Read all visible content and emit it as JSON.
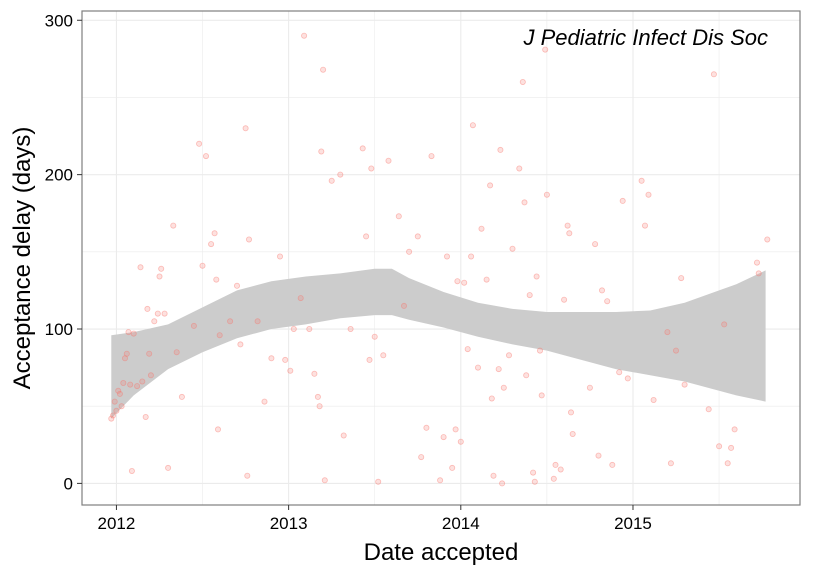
{
  "chart_data": {
    "type": "scatter",
    "title": "",
    "annotation": "J Pediatric Infect Dis Soc",
    "xlabel": "Date accepted",
    "ylabel": "Acceptance delay (days)",
    "x_ticks": [
      2012,
      2013,
      2014,
      2015
    ],
    "y_ticks": [
      0,
      100,
      200,
      300
    ],
    "xlim": [
      2011.8,
      2015.97
    ],
    "ylim": [
      -14,
      306
    ],
    "grid": true,
    "legend": "none",
    "colors": {
      "points": "#F8766D",
      "smooth_band": "#cccccc",
      "panel_border": "#7f7f7f",
      "grid": "#ebebeb"
    },
    "smooth_band": {
      "x": [
        2011.97,
        2012.1,
        2012.3,
        2012.5,
        2012.7,
        2012.9,
        2013.1,
        2013.3,
        2013.5,
        2013.6,
        2013.7,
        2013.9,
        2014.1,
        2014.3,
        2014.5,
        2014.7,
        2014.9,
        2015.1,
        2015.3,
        2015.5,
        2015.6,
        2015.77
      ],
      "upper": [
        96,
        98,
        103,
        114,
        125,
        131,
        134,
        136,
        139,
        139,
        133,
        124,
        117,
        113,
        111,
        111,
        111,
        112,
        117,
        125,
        129,
        138
      ],
      "lower": [
        42,
        57,
        74,
        85,
        94,
        100,
        103,
        107,
        109,
        109,
        106,
        101,
        95,
        90,
        86,
        80,
        74,
        70,
        66,
        60,
        57,
        53
      ]
    },
    "points": [
      {
        "x": 2011.97,
        "y": 42
      },
      {
        "x": 2011.98,
        "y": 44
      },
      {
        "x": 2011.99,
        "y": 53
      },
      {
        "x": 2012.0,
        "y": 47
      },
      {
        "x": 2012.01,
        "y": 60
      },
      {
        "x": 2012.02,
        "y": 58
      },
      {
        "x": 2012.03,
        "y": 50
      },
      {
        "x": 2012.04,
        "y": 65
      },
      {
        "x": 2012.05,
        "y": 81
      },
      {
        "x": 2012.06,
        "y": 84
      },
      {
        "x": 2012.07,
        "y": 98
      },
      {
        "x": 2012.08,
        "y": 64
      },
      {
        "x": 2012.09,
        "y": 8
      },
      {
        "x": 2012.1,
        "y": 97
      },
      {
        "x": 2012.12,
        "y": 63
      },
      {
        "x": 2012.14,
        "y": 140
      },
      {
        "x": 2012.15,
        "y": 66
      },
      {
        "x": 2012.17,
        "y": 43
      },
      {
        "x": 2012.18,
        "y": 113
      },
      {
        "x": 2012.19,
        "y": 84
      },
      {
        "x": 2012.2,
        "y": 70
      },
      {
        "x": 2012.22,
        "y": 105
      },
      {
        "x": 2012.24,
        "y": 110
      },
      {
        "x": 2012.25,
        "y": 134
      },
      {
        "x": 2012.26,
        "y": 139
      },
      {
        "x": 2012.28,
        "y": 110
      },
      {
        "x": 2012.3,
        "y": 10
      },
      {
        "x": 2012.33,
        "y": 167
      },
      {
        "x": 2012.35,
        "y": 85
      },
      {
        "x": 2012.38,
        "y": 56
      },
      {
        "x": 2012.45,
        "y": 102
      },
      {
        "x": 2012.48,
        "y": 220
      },
      {
        "x": 2012.5,
        "y": 141
      },
      {
        "x": 2012.52,
        "y": 212
      },
      {
        "x": 2012.55,
        "y": 155
      },
      {
        "x": 2012.57,
        "y": 162
      },
      {
        "x": 2012.58,
        "y": 132
      },
      {
        "x": 2012.59,
        "y": 35
      },
      {
        "x": 2012.6,
        "y": 96
      },
      {
        "x": 2012.66,
        "y": 105
      },
      {
        "x": 2012.7,
        "y": 128
      },
      {
        "x": 2012.72,
        "y": 90
      },
      {
        "x": 2012.75,
        "y": 230
      },
      {
        "x": 2012.76,
        "y": 5
      },
      {
        "x": 2012.77,
        "y": 158
      },
      {
        "x": 2012.82,
        "y": 105
      },
      {
        "x": 2012.86,
        "y": 53
      },
      {
        "x": 2012.9,
        "y": 81
      },
      {
        "x": 2012.95,
        "y": 147
      },
      {
        "x": 2012.98,
        "y": 80
      },
      {
        "x": 2013.01,
        "y": 73
      },
      {
        "x": 2013.03,
        "y": 100
      },
      {
        "x": 2013.07,
        "y": 120
      },
      {
        "x": 2013.09,
        "y": 290
      },
      {
        "x": 2013.12,
        "y": 100
      },
      {
        "x": 2013.15,
        "y": 71
      },
      {
        "x": 2013.17,
        "y": 56
      },
      {
        "x": 2013.18,
        "y": 50
      },
      {
        "x": 2013.19,
        "y": 215
      },
      {
        "x": 2013.2,
        "y": 268
      },
      {
        "x": 2013.21,
        "y": 2
      },
      {
        "x": 2013.25,
        "y": 196
      },
      {
        "x": 2013.3,
        "y": 200
      },
      {
        "x": 2013.32,
        "y": 31
      },
      {
        "x": 2013.36,
        "y": 100
      },
      {
        "x": 2013.43,
        "y": 217
      },
      {
        "x": 2013.45,
        "y": 160
      },
      {
        "x": 2013.47,
        "y": 80
      },
      {
        "x": 2013.48,
        "y": 204
      },
      {
        "x": 2013.5,
        "y": 95
      },
      {
        "x": 2013.52,
        "y": 1
      },
      {
        "x": 2013.55,
        "y": 83
      },
      {
        "x": 2013.58,
        "y": 209
      },
      {
        "x": 2013.64,
        "y": 173
      },
      {
        "x": 2013.67,
        "y": 115
      },
      {
        "x": 2013.7,
        "y": 150
      },
      {
        "x": 2013.75,
        "y": 160
      },
      {
        "x": 2013.77,
        "y": 17
      },
      {
        "x": 2013.8,
        "y": 36
      },
      {
        "x": 2013.83,
        "y": 212
      },
      {
        "x": 2013.88,
        "y": 2
      },
      {
        "x": 2013.9,
        "y": 30
      },
      {
        "x": 2013.92,
        "y": 147
      },
      {
        "x": 2013.95,
        "y": 10
      },
      {
        "x": 2013.97,
        "y": 35
      },
      {
        "x": 2013.98,
        "y": 131
      },
      {
        "x": 2014.0,
        "y": 27
      },
      {
        "x": 2014.02,
        "y": 130
      },
      {
        "x": 2014.04,
        "y": 87
      },
      {
        "x": 2014.06,
        "y": 147
      },
      {
        "x": 2014.07,
        "y": 232
      },
      {
        "x": 2014.1,
        "y": 75
      },
      {
        "x": 2014.12,
        "y": 165
      },
      {
        "x": 2014.15,
        "y": 132
      },
      {
        "x": 2014.17,
        "y": 193
      },
      {
        "x": 2014.18,
        "y": 55
      },
      {
        "x": 2014.19,
        "y": 5
      },
      {
        "x": 2014.22,
        "y": 74
      },
      {
        "x": 2014.23,
        "y": 216
      },
      {
        "x": 2014.24,
        "y": 0
      },
      {
        "x": 2014.25,
        "y": 62
      },
      {
        "x": 2014.28,
        "y": 83
      },
      {
        "x": 2014.3,
        "y": 152
      },
      {
        "x": 2014.34,
        "y": 204
      },
      {
        "x": 2014.36,
        "y": 260
      },
      {
        "x": 2014.37,
        "y": 182
      },
      {
        "x": 2014.38,
        "y": 70
      },
      {
        "x": 2014.4,
        "y": 122
      },
      {
        "x": 2014.42,
        "y": 7
      },
      {
        "x": 2014.43,
        "y": 1
      },
      {
        "x": 2014.44,
        "y": 134
      },
      {
        "x": 2014.46,
        "y": 86
      },
      {
        "x": 2014.47,
        "y": 57
      },
      {
        "x": 2014.49,
        "y": 281
      },
      {
        "x": 2014.5,
        "y": 187
      },
      {
        "x": 2014.54,
        "y": 3
      },
      {
        "x": 2014.55,
        "y": 12
      },
      {
        "x": 2014.58,
        "y": 9
      },
      {
        "x": 2014.6,
        "y": 119
      },
      {
        "x": 2014.62,
        "y": 167
      },
      {
        "x": 2014.63,
        "y": 162
      },
      {
        "x": 2014.64,
        "y": 46
      },
      {
        "x": 2014.65,
        "y": 32
      },
      {
        "x": 2014.75,
        "y": 62
      },
      {
        "x": 2014.78,
        "y": 155
      },
      {
        "x": 2014.8,
        "y": 18
      },
      {
        "x": 2014.82,
        "y": 125
      },
      {
        "x": 2014.85,
        "y": 118
      },
      {
        "x": 2014.88,
        "y": 12
      },
      {
        "x": 2014.92,
        "y": 72
      },
      {
        "x": 2014.94,
        "y": 183
      },
      {
        "x": 2014.97,
        "y": 68
      },
      {
        "x": 2015.05,
        "y": 196
      },
      {
        "x": 2015.07,
        "y": 167
      },
      {
        "x": 2015.09,
        "y": 187
      },
      {
        "x": 2015.12,
        "y": 54
      },
      {
        "x": 2015.2,
        "y": 98
      },
      {
        "x": 2015.22,
        "y": 13
      },
      {
        "x": 2015.25,
        "y": 86
      },
      {
        "x": 2015.28,
        "y": 133
      },
      {
        "x": 2015.3,
        "y": 64
      },
      {
        "x": 2015.44,
        "y": 48
      },
      {
        "x": 2015.47,
        "y": 265
      },
      {
        "x": 2015.5,
        "y": 24
      },
      {
        "x": 2015.53,
        "y": 103
      },
      {
        "x": 2015.55,
        "y": 13
      },
      {
        "x": 2015.57,
        "y": 23
      },
      {
        "x": 2015.59,
        "y": 35
      },
      {
        "x": 2015.72,
        "y": 143
      },
      {
        "x": 2015.73,
        "y": 136
      },
      {
        "x": 2015.78,
        "y": 158
      }
    ]
  }
}
